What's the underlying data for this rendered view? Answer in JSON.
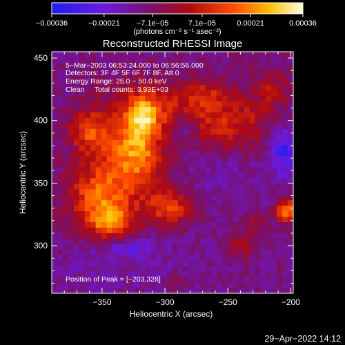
{
  "chart_data": {
    "type": "heatmap",
    "title": "Reconstructed RHESSI Image",
    "xlabel": "Heliocentric X (arcsec)",
    "ylabel": "Heliocentric Y (arcsec)",
    "xlim": [
      -390,
      -198
    ],
    "ylim": [
      262,
      455
    ],
    "x_ticks": [
      -350,
      -300,
      -250,
      -200
    ],
    "x_tick_labels": [
      "−350",
      "−300",
      "−250",
      "−200"
    ],
    "y_ticks": [
      300,
      350,
      400,
      450
    ],
    "y_tick_labels": [
      "300",
      "350",
      "400",
      "450"
    ],
    "colorbar": {
      "min": -0.00036,
      "max": 0.00036,
      "tick_values": [
        -0.00036,
        -0.00021,
        -7.1e-05,
        7.1e-05,
        0.00021,
        0.00036
      ],
      "tick_labels": [
        "−0.00036",
        "−0.00021",
        "−7.1e−05",
        "7.1e−05",
        "0.00021",
        "0.00036"
      ],
      "units": "(photons cm⁻² s⁻¹ asec⁻²)",
      "colors": [
        "#1e1ef0",
        "#6a1ae0",
        "#7a1066",
        "#b00a10",
        "#ff4a00",
        "#ffc000",
        "#ffffe0"
      ]
    },
    "annotations": [
      "5−Mar−2003 06:53:24.000 to 06:56:56.000",
      "Detectors: 3F 4F 5F 6F 7F 8F, Att 0",
      "Energy Range: 25.0 − 50.0 keV",
      "Clean     Total counts: 3.93E+03"
    ],
    "peak_label": "Position of Peak = [−203,328]",
    "peak": {
      "x": -203,
      "y": 328
    },
    "grid_cells": {
      "nx": 44,
      "ny": 44
    },
    "emission_blobs": [
      {
        "x": -333,
        "y": 372,
        "sx": 22,
        "sy": 32,
        "v": 0.00021
      },
      {
        "x": -356,
        "y": 338,
        "sx": 16,
        "sy": 16,
        "v": 0.0002
      },
      {
        "x": -343,
        "y": 318,
        "sx": 12,
        "sy": 10,
        "v": 0.00024
      },
      {
        "x": -320,
        "y": 380,
        "sx": 12,
        "sy": 22,
        "v": 0.00016
      },
      {
        "x": -318,
        "y": 405,
        "sx": 8,
        "sy": 10,
        "v": 0.00021
      },
      {
        "x": -362,
        "y": 392,
        "sx": 10,
        "sy": 12,
        "v": 0.00017
      },
      {
        "x": -296,
        "y": 330,
        "sx": 12,
        "sy": 10,
        "v": 0.00021
      },
      {
        "x": -300,
        "y": 412,
        "sx": 18,
        "sy": 14,
        "v": 0.00013
      },
      {
        "x": -268,
        "y": 418,
        "sx": 12,
        "sy": 10,
        "v": 0.00017
      },
      {
        "x": -240,
        "y": 398,
        "sx": 16,
        "sy": 20,
        "v": 0.00015
      },
      {
        "x": -262,
        "y": 392,
        "sx": 10,
        "sy": 10,
        "v": 0.00012
      },
      {
        "x": -215,
        "y": 425,
        "sx": 10,
        "sy": 12,
        "v": 0.00011
      },
      {
        "x": -240,
        "y": 300,
        "sx": 7,
        "sy": 7,
        "v": 0.00012
      },
      {
        "x": -228,
        "y": 318,
        "sx": 6,
        "sy": 6,
        "v": 0.0001
      },
      {
        "x": -203,
        "y": 328,
        "sx": 6,
        "sy": 6,
        "v": 0.00034
      },
      {
        "x": -290,
        "y": 270,
        "sx": 8,
        "sy": 6,
        "v": 8e-05
      },
      {
        "x": -330,
        "y": 300,
        "sx": 16,
        "sy": 6,
        "v": -0.00014
      },
      {
        "x": -295,
        "y": 280,
        "sx": 30,
        "sy": 18,
        "v": -4e-05
      },
      {
        "x": -250,
        "y": 360,
        "sx": 22,
        "sy": 18,
        "v": -6e-05
      },
      {
        "x": -205,
        "y": 375,
        "sx": 8,
        "sy": 12,
        "v": -0.0002
      },
      {
        "x": -285,
        "y": 395,
        "sx": 6,
        "sy": 5,
        "v": -8e-05
      },
      {
        "x": -360,
        "y": 280,
        "sx": 20,
        "sy": 12,
        "v": -5e-05
      }
    ]
  },
  "timestamp": "29−Apr−2022 14:12"
}
